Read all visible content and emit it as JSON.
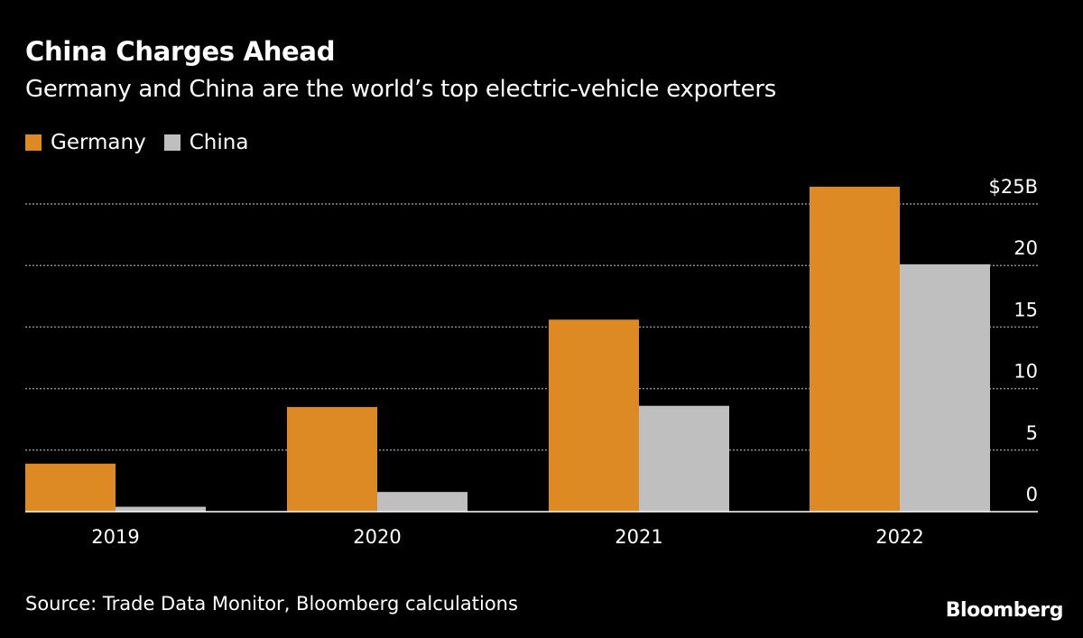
{
  "chart_data": {
    "type": "bar",
    "title": "China Charges Ahead",
    "subtitle": "Germany and China are the world’s top electric-vehicle exporters",
    "categories": [
      "2019",
      "2020",
      "2021",
      "2022"
    ],
    "series": [
      {
        "name": "Germany",
        "color": "#dd8a24",
        "values": [
          3.9,
          8.5,
          15.6,
          26.4
        ]
      },
      {
        "name": "China",
        "color": "#bfbfbf",
        "values": [
          0.4,
          1.6,
          8.6,
          20.1
        ]
      }
    ],
    "ylim": [
      0,
      25
    ],
    "yticks": [
      0,
      5,
      10,
      15,
      20,
      25
    ],
    "ytick_labels": [
      "0",
      "5",
      "10",
      "15",
      "20",
      "$25B"
    ],
    "y_axis_position": "right",
    "grid": true,
    "legend_placement": "top-left",
    "source": "Source: Trade Data Monitor, Bloomberg calculations",
    "logo": "Bloomberg"
  }
}
